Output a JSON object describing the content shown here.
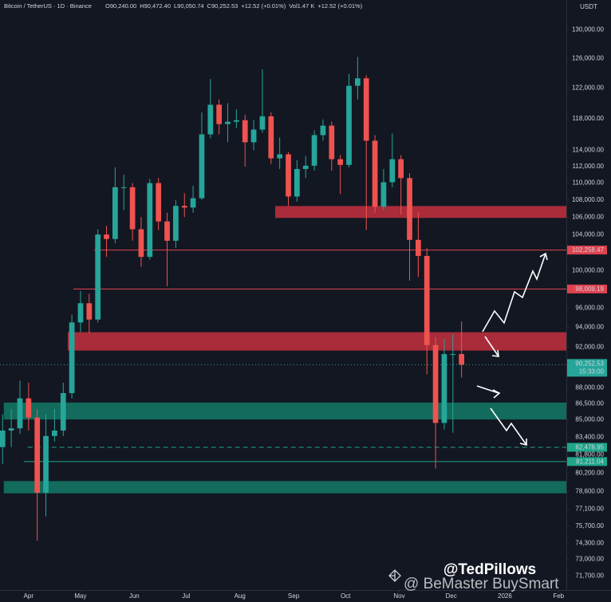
{
  "chart_data": {
    "type": "candlestick",
    "title": "Bitcoin / TetherUS · 1D · Binance",
    "ohlc_legend": [
      "O90,240.00",
      "H90,472.40",
      "L90,050.74",
      "C90,252.53",
      "+12.52 (+0.01%)",
      "Vol1.47 K",
      "+12.52 (+0.01%)"
    ],
    "currency": "USDT",
    "log_scale": true,
    "grid": false,
    "up_color": "#26a69a",
    "down_color": "#ef5350",
    "x": [
      -15,
      -10,
      -5,
      0,
      5,
      10,
      15,
      20,
      25,
      30,
      35,
      40,
      45,
      50,
      55,
      60,
      65,
      70,
      75,
      80,
      85,
      90,
      95,
      100,
      105,
      110,
      115,
      120,
      125,
      130,
      135,
      140,
      145,
      150,
      155,
      160,
      165,
      170,
      175,
      180,
      185,
      190,
      195,
      200,
      205,
      210,
      215,
      220,
      225,
      230,
      235,
      240,
      245,
      250
    ],
    "open": [
      82500,
      84000,
      84200,
      87000,
      85200,
      78500,
      83500,
      84000,
      87500,
      94500,
      96500,
      94800,
      104000,
      103500,
      109500,
      109500,
      104600,
      101500,
      110000,
      105500,
      103300,
      107300,
      107100,
      108200,
      116000,
      119800,
      117300,
      117600,
      117800,
      115000,
      116600,
      118300,
      113000,
      113500,
      108400,
      111700,
      112100,
      115900,
      117100,
      112900,
      112200,
      122300,
      123300,
      115200,
      107200,
      110100,
      112900,
      110600,
      103400,
      101600,
      92200,
      84700,
      91300,
      91300
    ],
    "high": [
      85500,
      86000,
      88700,
      88500,
      86000,
      85500,
      86000,
      88500,
      95300,
      97800,
      97500,
      104600,
      105000,
      111900,
      111000,
      110000,
      106000,
      110500,
      110600,
      106500,
      108000,
      108800,
      109700,
      118800,
      123200,
      120500,
      120000,
      119200,
      118500,
      117800,
      124500,
      118800,
      115600,
      113800,
      112800,
      113300,
      116500,
      117900,
      117600,
      113400,
      123900,
      126200,
      123700,
      115900,
      111700,
      116100,
      113400,
      111200,
      106600,
      102500,
      93000,
      92800,
      93300,
      94600
    ],
    "low": [
      81000,
      82500,
      83700,
      84000,
      74500,
      76500,
      83000,
      83500,
      87000,
      93500,
      93400,
      94500,
      101500,
      103000,
      106800,
      103300,
      100400,
      101200,
      104500,
      98300,
      102500,
      106000,
      106500,
      108000,
      115500,
      116000,
      115000,
      116800,
      112000,
      114000,
      116200,
      112300,
      111700,
      107300,
      107800,
      110600,
      111500,
      115200,
      111500,
      108700,
      111900,
      120500,
      104500,
      106500,
      106800,
      109500,
      106300,
      98900,
      99300,
      89300,
      80600,
      84100,
      83800,
      89000
    ],
    "close": [
      84000,
      84200,
      87000,
      85200,
      78500,
      83500,
      84000,
      87500,
      94500,
      96500,
      94800,
      104000,
      103500,
      109500,
      109500,
      104600,
      101500,
      110000,
      105500,
      103300,
      107300,
      107100,
      108200,
      116000,
      119800,
      117300,
      117600,
      117800,
      115000,
      116600,
      118300,
      113000,
      113500,
      108400,
      111700,
      112100,
      115900,
      117100,
      112900,
      112200,
      122300,
      123300,
      115200,
      107200,
      110100,
      112900,
      110600,
      103400,
      101600,
      92200,
      84700,
      91300,
      91300,
      90250
    ],
    "xlim": [
      -16.5,
      310.5
    ],
    "xticks": [
      {
        "value": 0,
        "label": "Apr"
      },
      {
        "value": 30,
        "label": "May"
      },
      {
        "value": 61,
        "label": "Jun"
      },
      {
        "value": 91,
        "label": "Jul"
      },
      {
        "value": 122,
        "label": "Aug"
      },
      {
        "value": 153,
        "label": "Sep"
      },
      {
        "value": 183,
        "label": "Oct"
      },
      {
        "value": 214,
        "label": "Nov"
      },
      {
        "value": 244,
        "label": "Dec"
      },
      {
        "value": 275,
        "label": "2026"
      },
      {
        "value": 306,
        "label": "Feb"
      }
    ],
    "ylim": [
      70600,
      132200
    ],
    "yticks": [
      {
        "value": 130000,
        "label": "130,000.00"
      },
      {
        "value": 126000,
        "label": "126,000.00"
      },
      {
        "value": 122000,
        "label": "122,000.00"
      },
      {
        "value": 118000,
        "label": "118,000.00"
      },
      {
        "value": 114000,
        "label": "114,000.00"
      },
      {
        "value": 112000,
        "label": "112,000.00"
      },
      {
        "value": 110000,
        "label": "110,000.00"
      },
      {
        "value": 108000,
        "label": "108,000.00"
      },
      {
        "value": 106000,
        "label": "106,000.00"
      },
      {
        "value": 104000,
        "label": "104,000.00"
      },
      {
        "value": 100000,
        "label": "100,000.00"
      },
      {
        "value": 96000,
        "label": "96,000.00"
      },
      {
        "value": 94000,
        "label": "94,000.00"
      },
      {
        "value": 92000,
        "label": "92,000.00"
      },
      {
        "value": 88000,
        "label": "88,000.00"
      },
      {
        "value": 86500,
        "label": "86,500.00"
      },
      {
        "value": 85000,
        "label": "85,000.00"
      },
      {
        "value": 83400,
        "label": "83,400.00"
      },
      {
        "value": 81800,
        "label": "81,800.00"
      },
      {
        "value": 80200,
        "label": "80,200.00"
      },
      {
        "value": 78600,
        "label": "78,600.00"
      },
      {
        "value": 77100,
        "label": "77,100.00"
      },
      {
        "value": 75700,
        "label": "75,700.00"
      },
      {
        "value": 74300,
        "label": "74,300.00"
      },
      {
        "value": 73000,
        "label": "73,000.00"
      },
      {
        "value": 71700,
        "label": "71,700.00"
      }
    ],
    "zones": [
      {
        "top": 107280,
        "bottom": 105900,
        "x_start": 142.4,
        "color": "#c62f3e"
      },
      {
        "top": 93500,
        "bottom": 91650,
        "x_start": 22.6,
        "color": "#c62f3e"
      },
      {
        "top": 86600,
        "bottom": 85020,
        "x_start": -14.3,
        "color": "#137a66"
      },
      {
        "top": 79500,
        "bottom": 78450,
        "x_start": -14.3,
        "color": "#137a66"
      }
    ],
    "levels": [
      {
        "value": 102258.47,
        "label": "102,258.47",
        "x_start": 37.8,
        "color": "#e0424f",
        "dashed": false
      },
      {
        "value": 98009.19,
        "label": "98,009.19",
        "x_start": 25.8,
        "color": "#e0424f",
        "dashed": false
      },
      {
        "value": 82478.95,
        "label": "82,478.95",
        "x_start": -0.5,
        "color": "#1fa58a",
        "dashed": true
      },
      {
        "value": 81211.04,
        "label": "81,211.04",
        "x_start": -2.8,
        "color": "#1fa58a",
        "dashed": false
      }
    ],
    "last_price": {
      "value": 90252.53,
      "label": "90,252.53"
    },
    "countdown": "15:33:00",
    "annotations": [
      "@TedPillows",
      "@ BeMaster BuySmart"
    ]
  }
}
